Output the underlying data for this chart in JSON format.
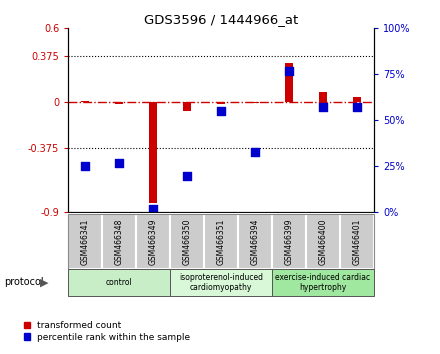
{
  "title": "GDS3596 / 1444966_at",
  "samples": [
    "GSM466341",
    "GSM466348",
    "GSM466349",
    "GSM466350",
    "GSM466351",
    "GSM466394",
    "GSM466399",
    "GSM466400",
    "GSM466401"
  ],
  "transformed_count": [
    0.01,
    -0.02,
    -0.82,
    -0.07,
    -0.02,
    -0.01,
    0.32,
    0.08,
    0.04
  ],
  "percentile_rank_raw": [
    25,
    27,
    2,
    20,
    55,
    33,
    77,
    57,
    57
  ],
  "ylim": [
    -0.9,
    0.6
  ],
  "yticks_left": [
    -0.9,
    -0.375,
    0,
    0.375,
    0.6
  ],
  "yticks_left_labels": [
    "-0.9",
    "-0.375",
    "0",
    "0.375",
    "0.6"
  ],
  "yticks_right_vals": [
    0,
    25,
    50,
    75,
    100
  ],
  "hlines": [
    0.375,
    -0.375
  ],
  "red_color": "#cc0000",
  "blue_color": "#0000cc",
  "bar_width": 0.25,
  "marker_size": 40,
  "groups": [
    {
      "label": "control",
      "indices": [
        0,
        1,
        2
      ],
      "color": "#c8eec8"
    },
    {
      "label": "isoproterenol-induced\ncardiomyopathy",
      "indices": [
        3,
        4,
        5
      ],
      "color": "#d8f8d8"
    },
    {
      "label": "exercise-induced cardiac\nhypertrophy",
      "indices": [
        6,
        7,
        8
      ],
      "color": "#a0e8a0"
    }
  ],
  "protocol_label": "protocol",
  "legend_items": [
    {
      "label": "transformed count",
      "color": "#cc0000"
    },
    {
      "label": "percentile rank within the sample",
      "color": "#0000cc"
    }
  ],
  "bg_color": "#ffffff",
  "label_box_color": "#cccccc",
  "label_box_edge": "#888888"
}
